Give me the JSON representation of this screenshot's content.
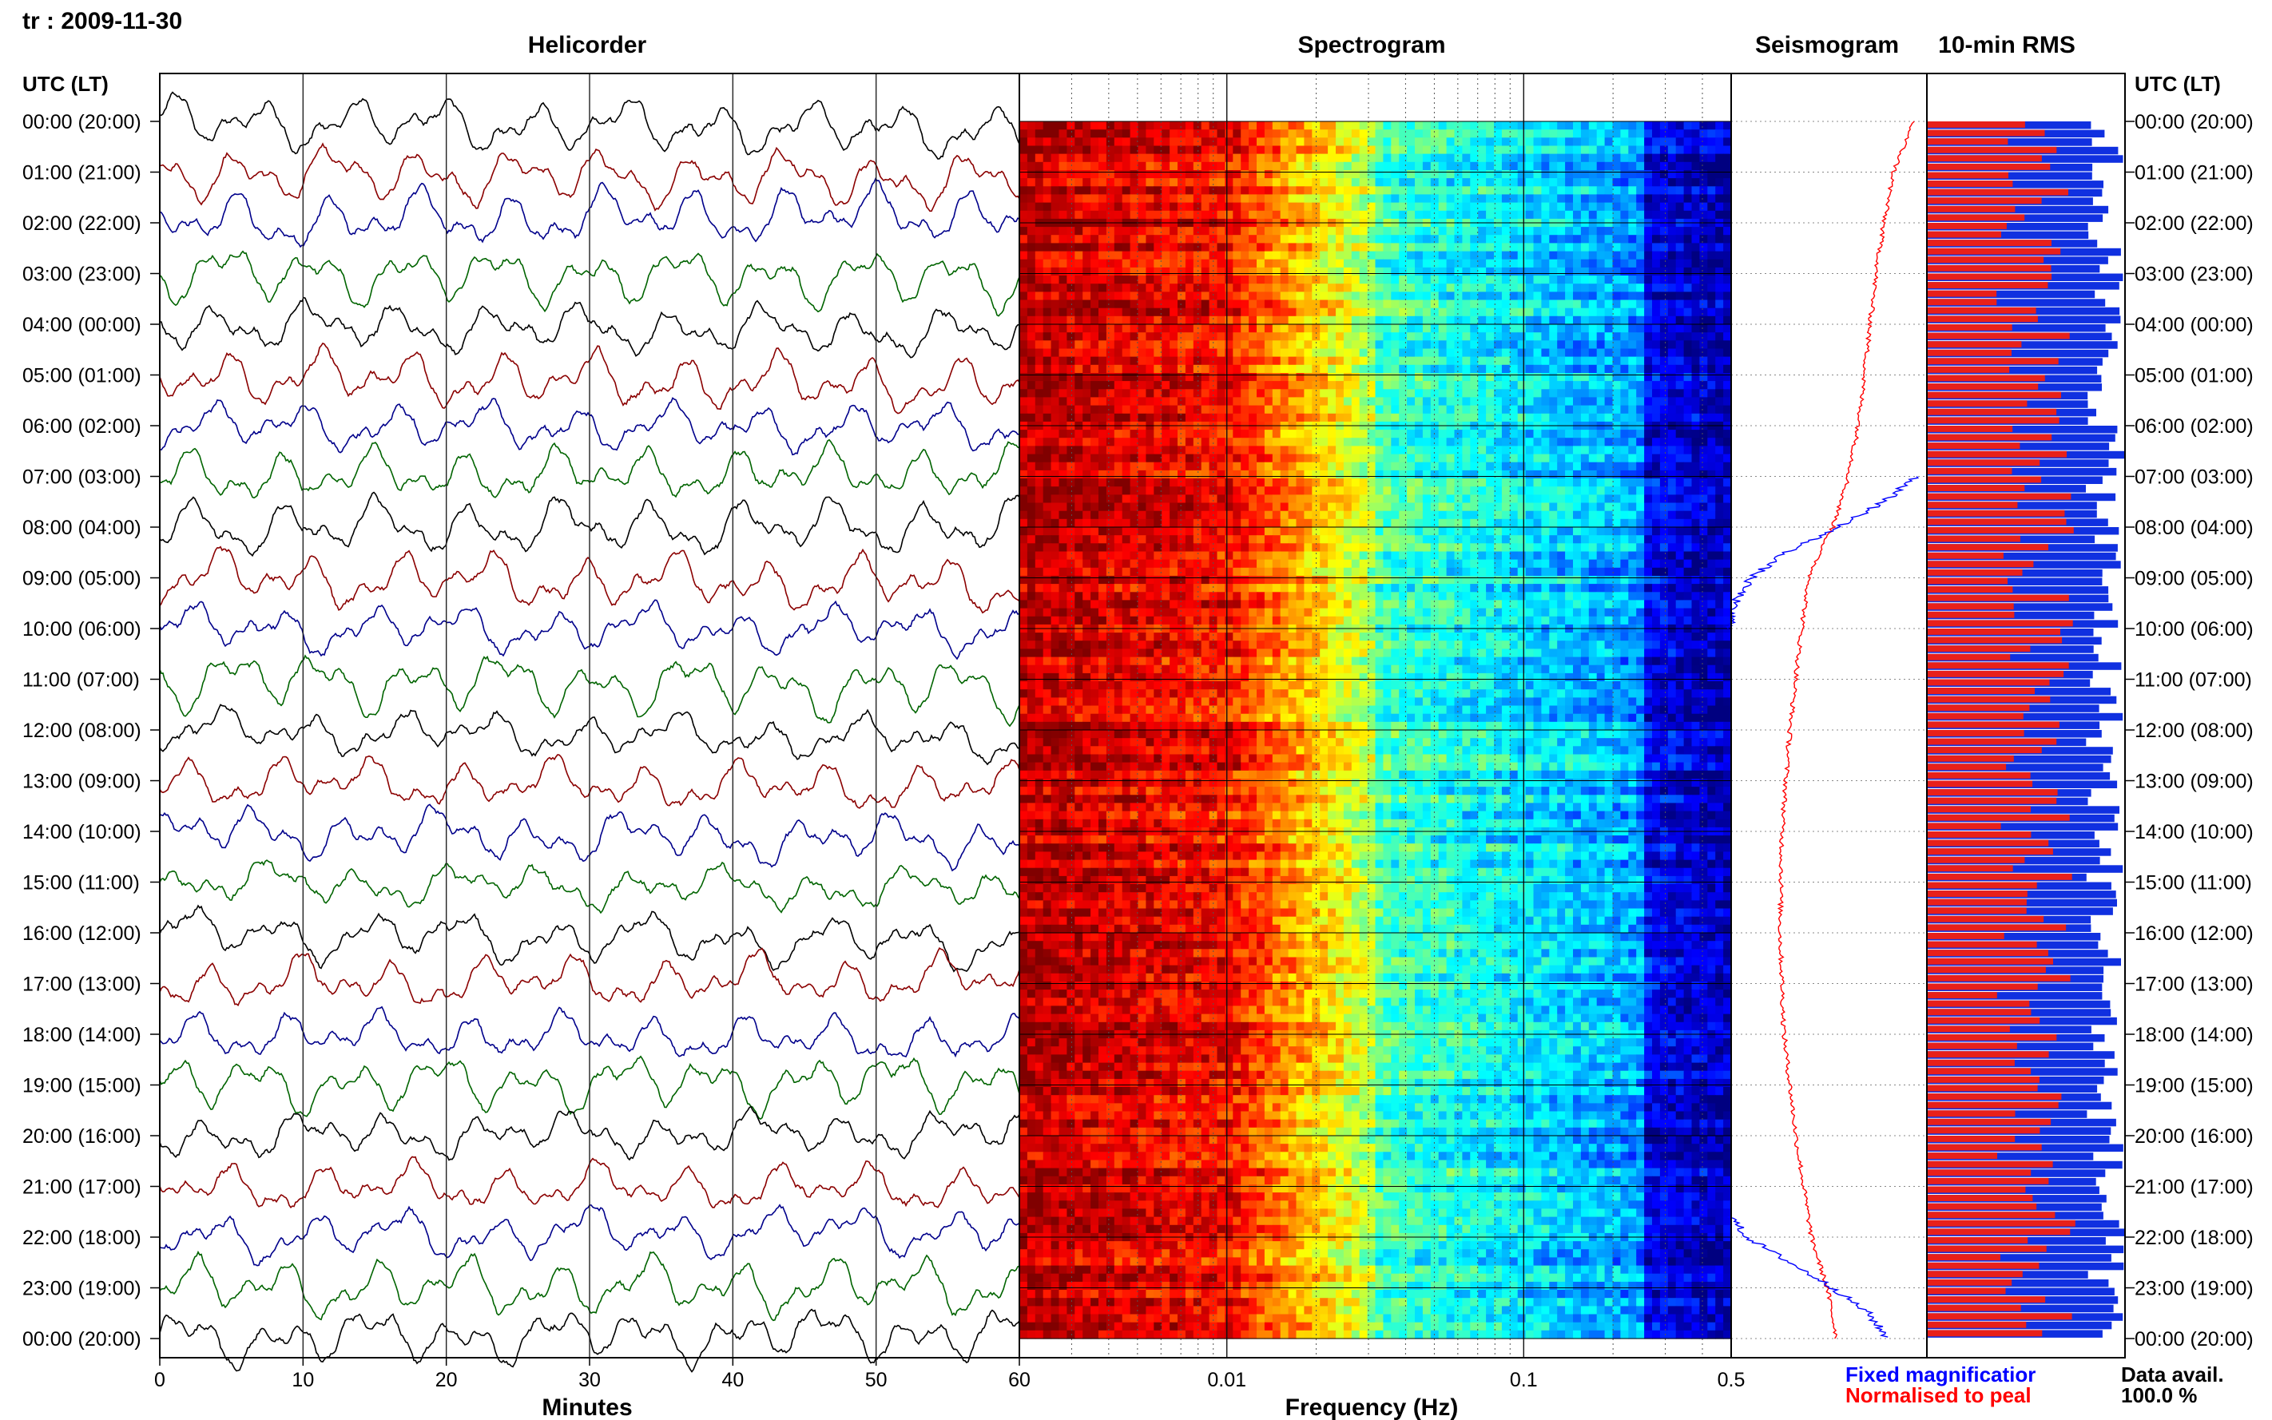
{
  "station_date": "tr : 2009-11-30",
  "panels": {
    "helicorder": "Helicorder",
    "spectrogram": "Spectrogram",
    "seismogram": "Seismogram",
    "rms": "10-min RMS"
  },
  "time_axis_title": "UTC (LT)",
  "time_labels": [
    "00:00 (20:00)",
    "01:00 (21:00)",
    "02:00 (22:00)",
    "03:00 (23:00)",
    "04:00 (00:00)",
    "05:00 (01:00)",
    "06:00 (02:00)",
    "07:00 (03:00)",
    "08:00 (04:00)",
    "09:00 (05:00)",
    "10:00 (06:00)",
    "11:00 (07:00)",
    "12:00 (08:00)",
    "13:00 (09:00)",
    "14:00 (10:00)",
    "15:00 (11:00)",
    "16:00 (12:00)",
    "17:00 (13:00)",
    "18:00 (14:00)",
    "19:00 (15:00)",
    "20:00 (16:00)",
    "21:00 (17:00)",
    "22:00 (18:00)",
    "23:00 (19:00)",
    "00:00 (20:00)"
  ],
  "legend": {
    "fixed": "Fixed magnificatior",
    "normalised": "Normalised to peal",
    "data_avail_label": "Data avail.",
    "data_avail_value": "100.0 %"
  },
  "colors": {
    "trace_cycle": [
      "#000000",
      "#8b0000",
      "#00008b",
      "#006400"
    ],
    "fixed_mag": "#0000ff",
    "normalised": "#ff0000",
    "rms_fill": "#e8201a",
    "rms_bg": "#1030e0"
  },
  "chart_data": [
    {
      "type": "line",
      "title": "Helicorder",
      "xlabel": "Minutes",
      "x_ticks": [
        "0",
        "10",
        "20",
        "30",
        "40",
        "50",
        "60"
      ],
      "xlim": [
        0,
        60
      ],
      "rows": 25,
      "trace_colors_cycle": [
        "black",
        "darkred",
        "darkblue",
        "darkgreen"
      ]
    },
    {
      "type": "heatmap",
      "title": "Spectrogram",
      "xlabel": "Frequency (Hz)",
      "x_scale": "log",
      "x_ticks": [
        "0.01",
        "0.1",
        "0.5"
      ],
      "xlim": [
        0.002,
        0.5
      ],
      "colormap": "jet"
    },
    {
      "type": "line",
      "title": "Seismogram",
      "series": [
        {
          "name": "Fixed magnificatior",
          "color": "blue"
        },
        {
          "name": "Normalised to peal",
          "color": "red"
        }
      ],
      "normalised_trace": [
        [
          0.0,
          0.93
        ],
        [
          1.0,
          0.83
        ],
        [
          2.0,
          0.78
        ],
        [
          3.0,
          0.74
        ],
        [
          4.0,
          0.71
        ],
        [
          5.0,
          0.68
        ],
        [
          6.0,
          0.65
        ],
        [
          7.0,
          0.6
        ],
        [
          8.0,
          0.52
        ],
        [
          8.5,
          0.45
        ],
        [
          9.0,
          0.4
        ],
        [
          10.0,
          0.36
        ],
        [
          12.0,
          0.3
        ],
        [
          14.0,
          0.26
        ],
        [
          16.0,
          0.25
        ],
        [
          18.0,
          0.27
        ],
        [
          20.0,
          0.33
        ],
        [
          21.0,
          0.37
        ],
        [
          22.0,
          0.41
        ],
        [
          23.0,
          0.49
        ],
        [
          24.0,
          0.54
        ]
      ],
      "fixed_trace": [
        [
          7.0,
          0.95
        ],
        [
          7.5,
          0.78
        ],
        [
          8.0,
          0.55
        ],
        [
          8.5,
          0.28
        ],
        [
          9.0,
          0.1
        ],
        [
          9.6,
          0.0
        ],
        [
          10.0,
          0.0
        ],
        [
          21.6,
          0.0
        ],
        [
          22.0,
          0.08
        ],
        [
          22.5,
          0.3
        ],
        [
          23.0,
          0.52
        ],
        [
          23.5,
          0.7
        ],
        [
          24.0,
          0.8
        ]
      ]
    },
    {
      "type": "bar",
      "title": "10-min RMS",
      "orientation": "horizontal",
      "bins": 144,
      "description_values": "per 10-min bin fraction of panel width; red = normalised RMS, blue = fixed"
    }
  ]
}
